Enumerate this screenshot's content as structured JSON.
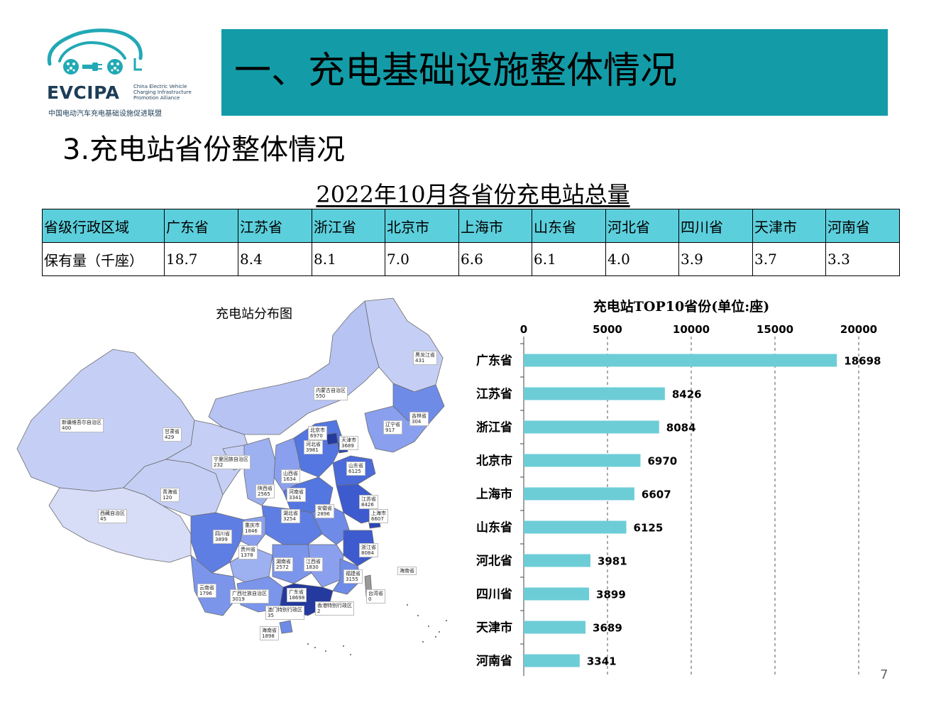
{
  "logo": {
    "word": "EVCIPA",
    "sub": [
      "China Electric Vehicle",
      "Charging Infrastructure",
      "Promotion Alliance"
    ],
    "cn": "中国电动汽车充电基础设施促进联盟",
    "color": "#21a9b5"
  },
  "banner": {
    "title": "一、充电基础设施整体情况",
    "color": "#139ca7"
  },
  "section_title": "3.充电站省份整体情况",
  "table": {
    "title": "2022年10月各省份充电站总量",
    "header": [
      "省级行政区域",
      "广东省",
      "江苏省",
      "浙江省",
      "北京市",
      "上海市",
      "山东省",
      "河北省",
      "四川省",
      "天津市",
      "河南省"
    ],
    "row": [
      "保有量（千座）",
      "18.7",
      "8.4",
      "8.1",
      "7.0",
      "6.6",
      "6.1",
      "4.0",
      "3.9",
      "3.7",
      "3.3"
    ],
    "header_color": "#5ccfdc"
  },
  "map": {
    "title": "充电站分布图",
    "labels": [
      {
        "name": "黑龙江省",
        "value": "431"
      },
      {
        "name": "内蒙古自治区",
        "value": "550"
      },
      {
        "name": "吉林省",
        "value": "304"
      },
      {
        "name": "辽宁省",
        "value": "917"
      },
      {
        "name": "新疆维吾尔自治区",
        "value": "400"
      },
      {
        "name": "甘肃省",
        "value": "429"
      },
      {
        "name": "北京市",
        "value": "6970"
      },
      {
        "name": "天津市",
        "value": "3689"
      },
      {
        "name": "河北省",
        "value": "3981"
      },
      {
        "name": "宁夏回族自治区",
        "value": "232"
      },
      {
        "name": "山东省",
        "value": "6125"
      },
      {
        "name": "山西省",
        "value": "1634"
      },
      {
        "name": "陕西省",
        "value": "2565"
      },
      {
        "name": "河南省",
        "value": "3341"
      },
      {
        "name": "青海省",
        "value": "120"
      },
      {
        "name": "江苏省",
        "value": "8426"
      },
      {
        "name": "安徽省",
        "value": "2896"
      },
      {
        "name": "湖北省",
        "value": "3254"
      },
      {
        "name": "上海市",
        "value": "6607"
      },
      {
        "name": "西藏自治区",
        "value": "45"
      },
      {
        "name": "重庆市",
        "value": "1846"
      },
      {
        "name": "四川省",
        "value": "3899"
      },
      {
        "name": "浙江省",
        "value": "8084"
      },
      {
        "name": "贵州省",
        "value": "1378"
      },
      {
        "name": "湖南省",
        "value": "2572"
      },
      {
        "name": "江西省",
        "value": "1830"
      },
      {
        "name": "福建省",
        "value": "3155"
      },
      {
        "name": "海南省",
        "value": "1898"
      },
      {
        "name": "云南省",
        "value": "1796"
      },
      {
        "name": "广西壮族自治区",
        "value": "3019"
      },
      {
        "name": "广东省",
        "value": "18698"
      },
      {
        "name": "台湾省",
        "value": "0"
      },
      {
        "name": "澳门特别行政区",
        "value": "35"
      },
      {
        "name": "香港特别行政区",
        "value": "2"
      },
      {
        "name": "海南省",
        "value": "1898"
      }
    ],
    "colors": {
      "low": "#c5cff5",
      "mid": "#6f8be8",
      "high": "#4261d6",
      "top": "#253a9e"
    }
  },
  "chart_data": {
    "type": "bar",
    "orientation": "horizontal",
    "title": "充电站TOP10省份(单位:座)",
    "categories": [
      "广东省",
      "江苏省",
      "浙江省",
      "北京市",
      "上海市",
      "山东省",
      "河北省",
      "四川省",
      "天津市",
      "河南省"
    ],
    "values": [
      18698,
      8426,
      8084,
      6970,
      6607,
      6125,
      3981,
      3899,
      3689,
      3341
    ],
    "xlim": [
      0,
      20000
    ],
    "xticks": [
      0,
      5000,
      10000,
      15000,
      20000
    ],
    "axis_position": "top",
    "grid": true,
    "bar_color": "#6dcdd7"
  },
  "page_number": "7"
}
